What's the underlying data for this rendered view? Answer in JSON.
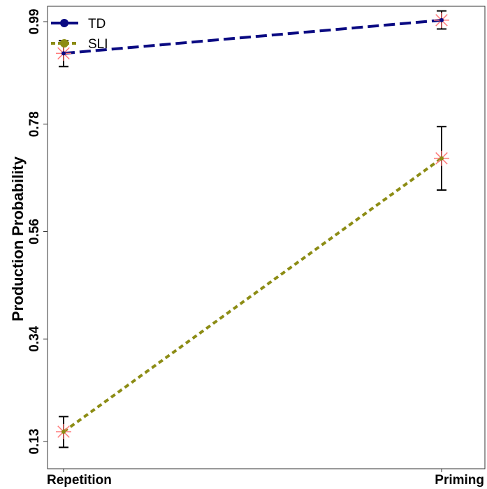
{
  "chart_data": {
    "type": "line",
    "title": "",
    "xlabel": "",
    "ylabel": "Production Probability",
    "categories": [
      "Repetition",
      "Priming"
    ],
    "yticks": [
      "0.13",
      "0.34",
      "0.56",
      "0.78",
      "0.99"
    ],
    "ylim": [
      0.11,
      1.01
    ],
    "grid": false,
    "legend_position": "top-left",
    "series": [
      {
        "name": "TD",
        "values": [
          0.925,
          0.993
        ],
        "error_low": [
          0.898,
          0.975
        ],
        "error_high": [
          0.951,
          1.012
        ],
        "color": "#0a0a82",
        "style": "long-dash"
      },
      {
        "name": "SLI",
        "values": [
          0.15,
          0.71
        ],
        "error_low": [
          0.118,
          0.645
        ],
        "error_high": [
          0.181,
          0.775
        ],
        "color": "#8c8c14",
        "style": "short-dash"
      }
    ],
    "marker_color": "#ff7a7a",
    "errorbar_color": "#000000"
  }
}
